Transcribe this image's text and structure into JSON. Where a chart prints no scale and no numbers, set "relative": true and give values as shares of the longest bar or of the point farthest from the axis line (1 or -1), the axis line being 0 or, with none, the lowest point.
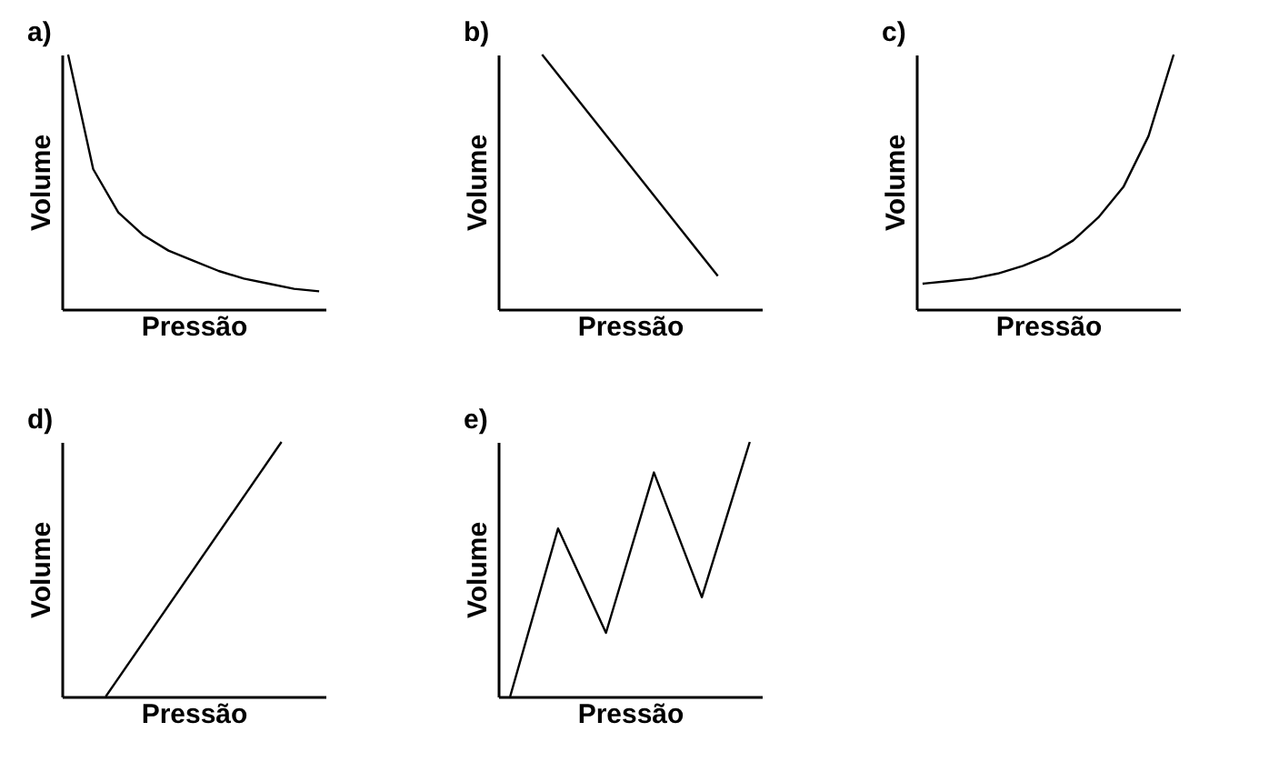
{
  "chart_data": [
    {
      "type": "line",
      "title": "a)",
      "xlabel": "Pressão",
      "ylabel": "Volume",
      "relative": true,
      "color": "#000000",
      "categories": [
        null,
        null,
        null,
        null,
        null,
        null,
        null,
        null,
        null,
        null,
        null
      ],
      "values": [
        1,
        0.55,
        0.38,
        0.29,
        0.23,
        0.19,
        0.15,
        0.12,
        0.1,
        0.08,
        0.07
      ]
    },
    {
      "type": "line",
      "title": "b)",
      "xlabel": "Pressão",
      "ylabel": "Volume",
      "relative": true,
      "color": "#000000",
      "categories": [
        null,
        null
      ],
      "values": [
        1,
        0.13
      ]
    },
    {
      "type": "line",
      "title": "c)",
      "xlabel": "Pressão",
      "ylabel": "Volume",
      "relative": true,
      "color": "#000000",
      "categories": [
        null,
        null,
        null,
        null,
        null,
        null,
        null,
        null,
        null,
        null,
        null
      ],
      "values": [
        0.1,
        0.11,
        0.12,
        0.14,
        0.17,
        0.21,
        0.27,
        0.36,
        0.48,
        0.68,
        1
      ]
    },
    {
      "type": "line",
      "title": "d)",
      "xlabel": "Pressão",
      "ylabel": "Volume",
      "relative": true,
      "color": "#000000",
      "categories": [
        null,
        null
      ],
      "values": [
        0,
        1
      ]
    },
    {
      "type": "line",
      "title": "e)",
      "xlabel": "Pressão",
      "ylabel": "Volume",
      "relative": true,
      "color": "#000000",
      "categories": [
        null,
        null,
        null,
        null,
        null,
        null
      ],
      "values": [
        0,
        0.66,
        0.25,
        0.88,
        0.39,
        1
      ]
    }
  ]
}
